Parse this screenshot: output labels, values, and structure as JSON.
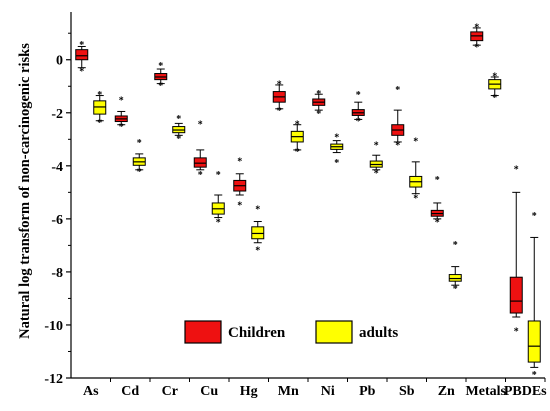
{
  "chart_data": {
    "type": "box",
    "title": "",
    "xlabel": "",
    "ylabel": "Natural log transform of non-carcinogenic risks",
    "ylim": [
      -12,
      1.8
    ],
    "yticks": [
      0,
      -2,
      -4,
      -6,
      -8,
      -10,
      -12
    ],
    "categories": [
      "As",
      "Cd",
      "Cr",
      "Cu",
      "Hg",
      "Mn",
      "Ni",
      "Pb",
      "Sb",
      "Zn",
      "Metals",
      "PBDEs"
    ],
    "grid": false,
    "legend_position": "bottom-center",
    "series": [
      {
        "name": "Children",
        "color": "#ee1111",
        "boxes": [
          {
            "whisker_low": -0.3,
            "q1": 0.0,
            "median": 0.15,
            "q3": 0.38,
            "whisker_high": 0.5,
            "outliers": [
              0.6,
              -0.4
            ]
          },
          {
            "whisker_low": -2.45,
            "q1": -2.33,
            "median": -2.23,
            "q3": -2.12,
            "whisker_high": -1.95,
            "outliers": [
              -1.5,
              -2.5
            ]
          },
          {
            "whisker_low": -0.9,
            "q1": -0.75,
            "median": -0.65,
            "q3": -0.52,
            "whisker_high": -0.35,
            "outliers": [
              -0.2,
              -0.95
            ]
          },
          {
            "whisker_low": -4.15,
            "q1": -4.05,
            "median": -3.9,
            "q3": -3.7,
            "whisker_high": -3.4,
            "outliers": [
              -2.4,
              -4.3
            ]
          },
          {
            "whisker_low": -5.1,
            "q1": -4.95,
            "median": -4.75,
            "q3": -4.55,
            "whisker_high": -4.3,
            "outliers": [
              -3.8,
              -5.45
            ]
          },
          {
            "whisker_low": -1.85,
            "q1": -1.6,
            "median": -1.4,
            "q3": -1.2,
            "whisker_high": -0.95,
            "outliers": [
              -0.9,
              -1.9
            ]
          },
          {
            "whisker_low": -1.9,
            "q1": -1.72,
            "median": -1.6,
            "q3": -1.48,
            "whisker_high": -1.3,
            "outliers": [
              -1.25,
              -2.0
            ]
          },
          {
            "whisker_low": -2.25,
            "q1": -2.1,
            "median": -2.0,
            "q3": -1.88,
            "whisker_high": -1.6,
            "outliers": [
              -1.3,
              -2.3
            ]
          },
          {
            "whisker_low": -3.1,
            "q1": -2.85,
            "median": -2.65,
            "q3": -2.45,
            "whisker_high": -1.9,
            "outliers": [
              -1.1,
              -3.2
            ]
          },
          {
            "whisker_low": -6.0,
            "q1": -5.9,
            "median": -5.8,
            "q3": -5.68,
            "whisker_high": -5.4,
            "outliers": [
              -4.5,
              -6.1
            ]
          },
          {
            "whisker_low": 0.55,
            "q1": 0.72,
            "median": 0.9,
            "q3": 1.05,
            "whisker_high": 1.2,
            "outliers": [
              1.25,
              0.5
            ]
          },
          {
            "whisker_low": -9.7,
            "q1": -9.55,
            "median": -9.1,
            "q3": -8.2,
            "whisker_high": -5.0,
            "outliers": [
              -4.1,
              -10.2
            ]
          }
        ]
      },
      {
        "name": "adults",
        "color": "#ffff00",
        "boxes": [
          {
            "whisker_low": -2.3,
            "q1": -2.05,
            "median": -1.78,
            "q3": -1.55,
            "whisker_high": -1.35,
            "outliers": [
              -1.3,
              -2.35
            ]
          },
          {
            "whisker_low": -4.15,
            "q1": -3.98,
            "median": -3.85,
            "q3": -3.7,
            "whisker_high": -3.55,
            "outliers": [
              -3.1,
              -4.2
            ]
          },
          {
            "whisker_low": -2.85,
            "q1": -2.75,
            "median": -2.65,
            "q3": -2.52,
            "whisker_high": -2.4,
            "outliers": [
              -2.2,
              -2.95
            ]
          },
          {
            "whisker_low": -5.95,
            "q1": -5.82,
            "median": -5.62,
            "q3": -5.4,
            "whisker_high": -5.1,
            "outliers": [
              -4.3,
              -6.1
            ]
          },
          {
            "whisker_low": -6.9,
            "q1": -6.75,
            "median": -6.55,
            "q3": -6.3,
            "whisker_high": -6.1,
            "outliers": [
              -5.6,
              -7.15
            ]
          },
          {
            "whisker_low": -3.4,
            "q1": -3.1,
            "median": -2.9,
            "q3": -2.7,
            "whisker_high": -2.45,
            "outliers": [
              -2.4,
              -3.45
            ]
          },
          {
            "whisker_low": -3.5,
            "q1": -3.38,
            "median": -3.28,
            "q3": -3.18,
            "whisker_high": -3.05,
            "outliers": [
              -2.9,
              -3.85
            ]
          },
          {
            "whisker_low": -4.15,
            "q1": -4.05,
            "median": -3.95,
            "q3": -3.82,
            "whisker_high": -3.6,
            "outliers": [
              -3.2,
              -4.25
            ]
          },
          {
            "whisker_low": -5.05,
            "q1": -4.8,
            "median": -4.6,
            "q3": -4.4,
            "whisker_high": -3.85,
            "outliers": [
              -3.05,
              -5.2
            ]
          },
          {
            "whisker_low": -8.5,
            "q1": -8.35,
            "median": -8.25,
            "q3": -8.1,
            "whisker_high": -7.8,
            "outliers": [
              -6.95,
              -8.6
            ]
          },
          {
            "whisker_low": -1.35,
            "q1": -1.1,
            "median": -0.92,
            "q3": -0.75,
            "whisker_high": -0.65,
            "outliers": [
              -0.6,
              -1.4
            ]
          },
          {
            "whisker_low": -11.6,
            "q1": -11.4,
            "median": -10.8,
            "q3": -9.85,
            "whisker_high": -6.7,
            "outliers": [
              -5.85,
              -11.85
            ]
          }
        ]
      }
    ]
  }
}
